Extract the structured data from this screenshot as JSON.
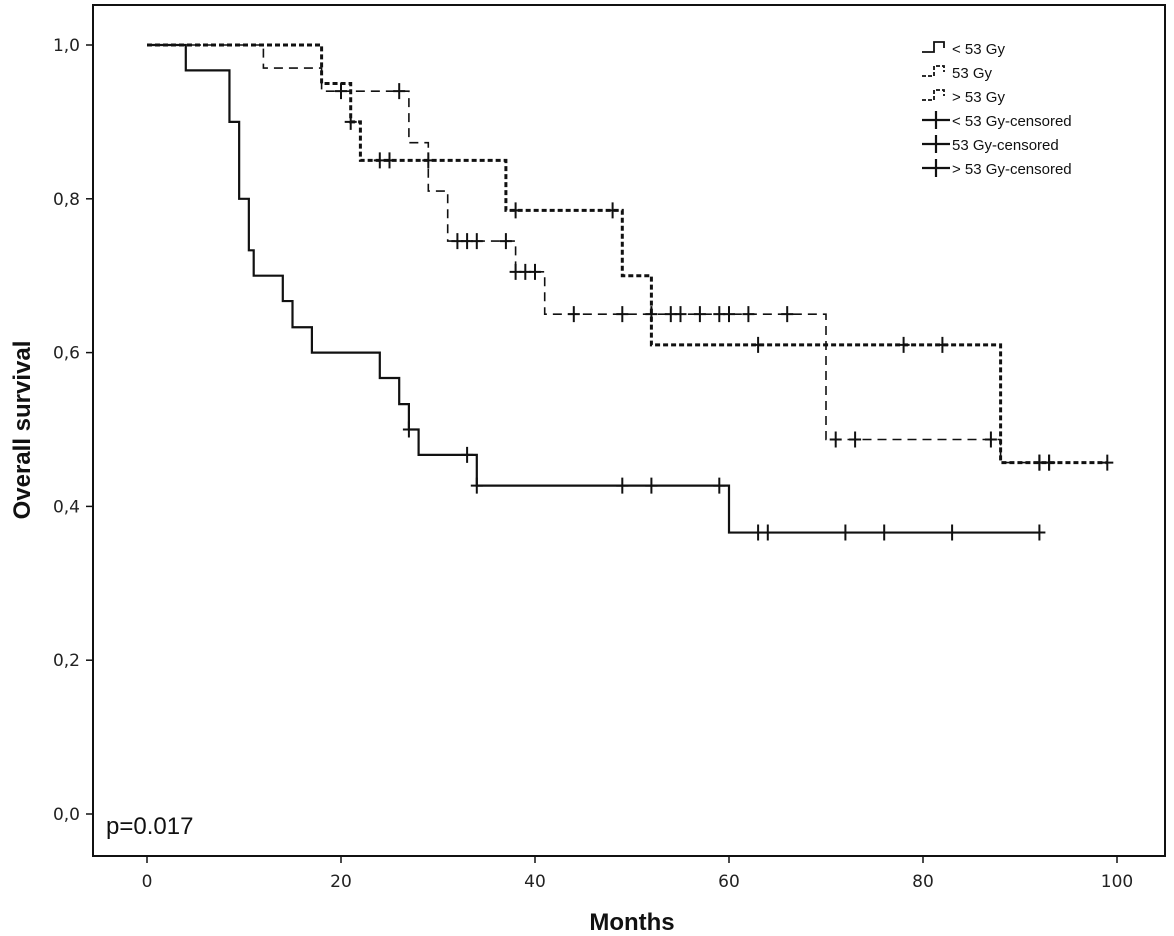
{
  "chart_data": {
    "type": "line",
    "subtype": "kaplan-meier step",
    "xlabel": "Months",
    "ylabel": "Overall survival",
    "xlim": [
      -5,
      105
    ],
    "ylim": [
      -0.06,
      1.05
    ],
    "xticks": [
      0,
      20,
      40,
      60,
      80,
      100
    ],
    "xtick_labels": [
      "0",
      "20",
      "40",
      "60",
      "80",
      "100"
    ],
    "yticks": [
      0,
      0.2,
      0.4,
      0.6,
      0.8,
      1.0
    ],
    "ytick_labels": [
      "0,0",
      "0,2",
      "0,4",
      "0,6",
      "0,8",
      "1,0"
    ],
    "grid": false,
    "legend_position": "top-right",
    "legend": [
      "< 53 Gy",
      "53 Gy",
      "> 53 Gy",
      "< 53 Gy-censored",
      "53 Gy-censored",
      "> 53 Gy-censored"
    ],
    "annotation": "p=0.017",
    "series": [
      {
        "name": "< 53 Gy",
        "style": "solid",
        "steps": [
          [
            0,
            1.0
          ],
          [
            4,
            0.967
          ],
          [
            8.5,
            0.9
          ],
          [
            9.5,
            0.8
          ],
          [
            10.5,
            0.733
          ],
          [
            11,
            0.7
          ],
          [
            14,
            0.667
          ],
          [
            15,
            0.633
          ],
          [
            17,
            0.6
          ],
          [
            24,
            0.567
          ],
          [
            26,
            0.533
          ],
          [
            27,
            0.5
          ],
          [
            28,
            0.467
          ],
          [
            34,
            0.427
          ],
          [
            60,
            0.366
          ]
        ],
        "end": 92,
        "censored": [
          27,
          33,
          34,
          49,
          52,
          59,
          63,
          64,
          72,
          76,
          83,
          92
        ]
      },
      {
        "name": "53 Gy",
        "style": "long-dash",
        "steps": [
          [
            0,
            1.0
          ],
          [
            12,
            0.97
          ],
          [
            18,
            0.94
          ],
          [
            27,
            0.873
          ],
          [
            29,
            0.81
          ],
          [
            31,
            0.745
          ],
          [
            38,
            0.705
          ],
          [
            41,
            0.65
          ],
          [
            70,
            0.487
          ],
          [
            88,
            0.457
          ]
        ],
        "end": 93,
        "censored": [
          20,
          26,
          32,
          33,
          34,
          37,
          38,
          39,
          40,
          44,
          49,
          52,
          54,
          55,
          57,
          59,
          60,
          62,
          66,
          71,
          73,
          87,
          92,
          93
        ]
      },
      {
        "name": "> 53 Gy",
        "style": "short-dash",
        "steps": [
          [
            0,
            1.0
          ],
          [
            18,
            0.95
          ],
          [
            21,
            0.9
          ],
          [
            22,
            0.85
          ],
          [
            37,
            0.785
          ],
          [
            49,
            0.7
          ],
          [
            52,
            0.61
          ],
          [
            88,
            0.457
          ]
        ],
        "end": 99,
        "censored": [
          21,
          24,
          25,
          29,
          38,
          48,
          63,
          78,
          82,
          92,
          93,
          99
        ]
      }
    ]
  }
}
